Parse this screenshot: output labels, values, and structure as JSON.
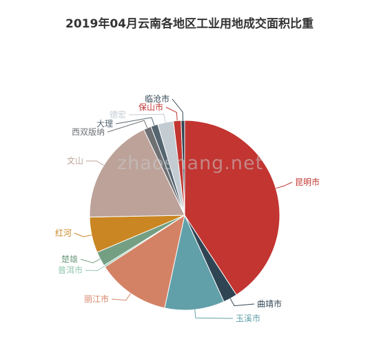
{
  "chart_data": {
    "type": "pie",
    "title": "2019年04月云南各地区工业用地成交面积比重",
    "slices": [
      {
        "name": "昆明市",
        "value": 41.0,
        "color": "#c23531"
      },
      {
        "name": "曲靖市",
        "value": 2.4,
        "color": "#2f4554"
      },
      {
        "name": "玉溪市",
        "value": 10.2,
        "color": "#61a0a8"
      },
      {
        "name": "丽江市",
        "value": 12.5,
        "color": "#d48265"
      },
      {
        "name": "普洱市",
        "value": 0.3,
        "color": "#91c7ae"
      },
      {
        "name": "楚雄",
        "value": 2.5,
        "color": "#749f83"
      },
      {
        "name": "红河",
        "value": 6.1,
        "color": "#ca8622"
      },
      {
        "name": "文山",
        "value": 18.3,
        "color": "#bda29a"
      },
      {
        "name": "西双版纳",
        "value": 1.3,
        "color": "#6e7074"
      },
      {
        "name": "大理",
        "value": 1.2,
        "color": "#546570"
      },
      {
        "name": "德宏",
        "value": 2.7,
        "color": "#c4ccd3"
      },
      {
        "name": "保山市",
        "value": 1.3,
        "color": "#c23531"
      },
      {
        "name": "临沧市",
        "value": 0.6,
        "color": "#2f4554"
      }
    ]
  },
  "watermark": "zhaoshang.net"
}
